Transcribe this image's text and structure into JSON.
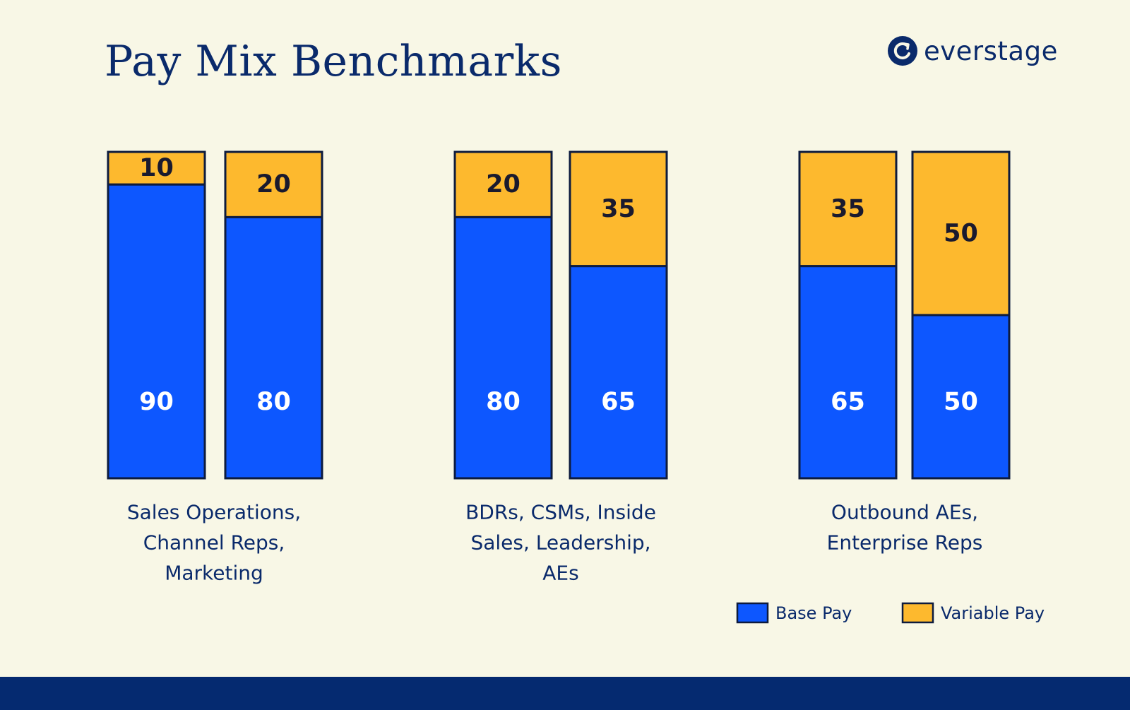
{
  "title": "Pay Mix Benchmarks",
  "brand": {
    "name": "everstage",
    "logo_icon": "everstage-logo-icon"
  },
  "colors": {
    "background": "#f8f7e6",
    "base": "#0d57ff",
    "variable": "#fdb92e",
    "outline": "#0d1b3e",
    "text": "#0a2a6b",
    "footer": "#052a70"
  },
  "chart_data": {
    "type": "bar",
    "stacked": true,
    "ylim": [
      0,
      100
    ],
    "grid": false,
    "legend_position": "bottom-right",
    "groups": [
      {
        "label": "Sales Operations, Channel Reps, Marketing",
        "label_lines": [
          "Sales Operations,",
          "Channel Reps,",
          "Marketing"
        ]
      },
      {
        "label": "BDRs, CSMs, Inside Sales, Leadership, AEs",
        "label_lines": [
          "BDRs, CSMs, Inside",
          "Sales, Leadership,",
          "AEs"
        ]
      },
      {
        "label": "Outbound AEs, Enterprise Reps",
        "label_lines": [
          "Outbound AEs,",
          "Enterprise Reps"
        ]
      }
    ],
    "bars": [
      {
        "group": 0,
        "base": 90,
        "variable": 10
      },
      {
        "group": 0,
        "base": 80,
        "variable": 20
      },
      {
        "group": 1,
        "base": 80,
        "variable": 20
      },
      {
        "group": 1,
        "base": 65,
        "variable": 35
      },
      {
        "group": 2,
        "base": 65,
        "variable": 35
      },
      {
        "group": 2,
        "base": 50,
        "variable": 50
      }
    ],
    "series": [
      {
        "name": "Base Pay",
        "key": "base"
      },
      {
        "name": "Variable Pay",
        "key": "variable"
      }
    ]
  }
}
